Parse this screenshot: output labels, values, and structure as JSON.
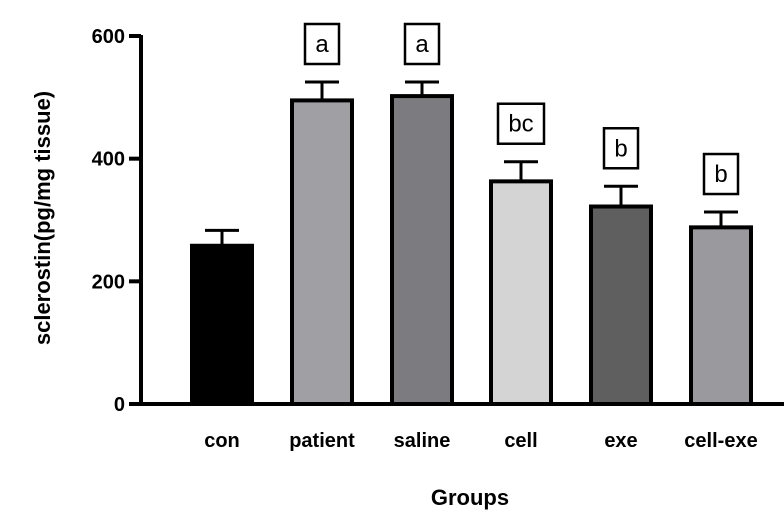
{
  "chart_data": {
    "type": "bar",
    "title": "",
    "xlabel": "Groups",
    "ylabel": "sclerostin(pg/mg tissue)",
    "ylim": [
      0,
      600
    ],
    "yticks": [
      0,
      200,
      400,
      600
    ],
    "categories": [
      "con",
      "patient",
      "saline",
      "cell",
      "exe",
      "cell-exe"
    ],
    "values": [
      258,
      495,
      502,
      363,
      322,
      288
    ],
    "errors": [
      25,
      30,
      23,
      32,
      33,
      25
    ],
    "bar_colors": [
      "#000000",
      "#a0a0a4",
      "#7c7c80",
      "#d4d4d4",
      "#5f5f5f",
      "#9a9a9e"
    ],
    "significance_labels": [
      "",
      "a",
      "a",
      "bc",
      "b",
      "b"
    ],
    "grid": false,
    "legend": "none"
  }
}
